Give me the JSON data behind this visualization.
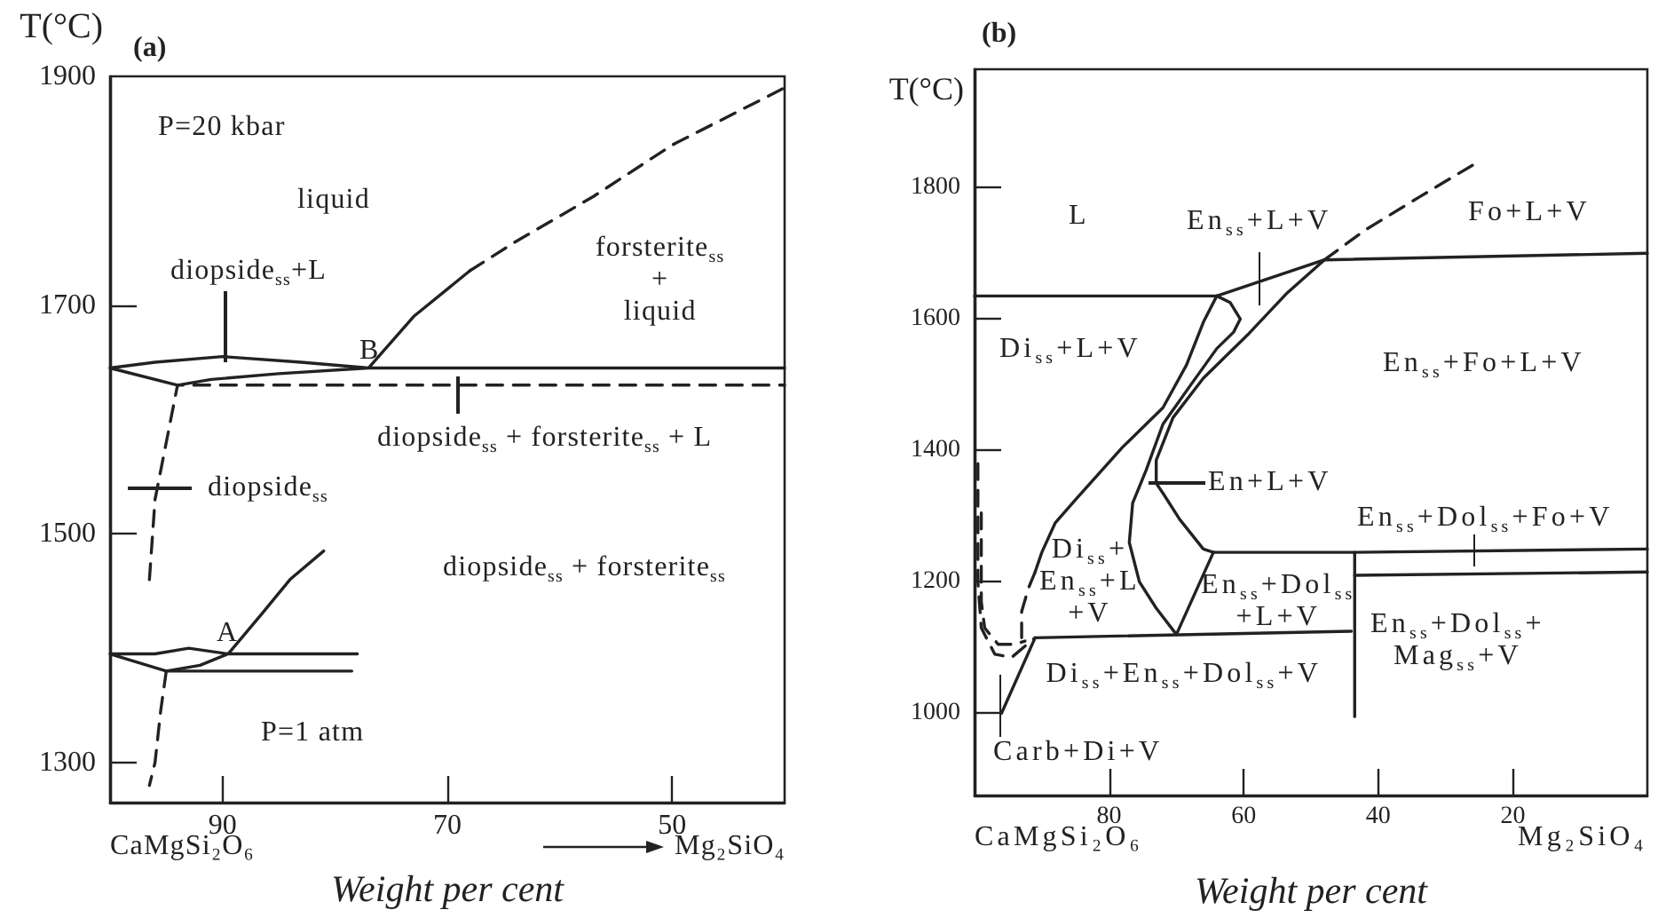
{
  "chart_data": [
    {
      "type": "line",
      "title": "(a)",
      "xlabel": "Weight per cent",
      "ylabel": "T(°C)",
      "xlim": [
        100,
        40
      ],
      "ylim": [
        1265,
        1900
      ],
      "xticks": [
        90,
        70,
        50
      ],
      "yticks": [
        1300,
        1500,
        1700,
        1900
      ],
      "marker": "none",
      "line_style": "solid",
      "series": [
        {
          "color": "#222222",
          "x": [
            68,
            73,
            77,
            83,
            90,
            96,
            100,
            94,
            91,
            85,
            77,
            40
          ],
          "values": [
            1730,
            1690,
            1645,
            1650,
            1655,
            1650,
            1645,
            1630,
            1635,
            1640,
            1645,
            1645
          ]
        },
        {
          "color": "#222222",
          "line_style": "dashed",
          "x": [
            96.5,
            96,
            95,
            94.5,
            94,
            91,
            40
          ],
          "values": [
            1460,
            1530,
            1580,
            1605,
            1630,
            1630,
            1630
          ]
        },
        {
          "color": "#222222",
          "line_style": "dashed",
          "x": [
            68,
            64,
            57,
            50,
            40
          ],
          "values": [
            1730,
            1755,
            1795,
            1840,
            1890
          ]
        },
        {
          "color": "#222222",
          "x": [
            81,
            84,
            86.5,
            89.5,
            93,
            96,
            100,
            95,
            92,
            89.5,
            78
          ],
          "values": [
            1485,
            1460,
            1430,
            1395,
            1400,
            1395,
            1395,
            1380,
            1385,
            1395,
            1395
          ]
        },
        {
          "color": "#222222",
          "x": [
            95,
            78.5
          ],
          "values": [
            1380,
            1380
          ]
        },
        {
          "color": "#222222",
          "line_style": "dashed",
          "x": [
            95,
            95.5,
            96,
            96.5
          ],
          "values": [
            1380,
            1345,
            1300,
            1280
          ]
        }
      ],
      "annotations": [
        "P=20 kbar",
        "liquid",
        "forsterite$_{ss}$ + liquid",
        "diopside$_{ss}$+L",
        "B",
        "diopside$_{ss}$ + forsterite$_{ss}$ + L",
        "diopside$_{ss}$",
        "diopside$_{ss}$ + forsterite$_{ss}$",
        "A",
        "P=1 atm",
        "CaMgSi₂O₆",
        "Mg₂SiO₄"
      ]
    },
    {
      "type": "line",
      "title": "(b)",
      "xlabel": "Weight per cent",
      "ylabel": "T(°C)",
      "xlim": [
        100,
        0
      ],
      "ylim": [
        875,
        1980
      ],
      "xticks": [
        80,
        60,
        40,
        20
      ],
      "yticks": [
        1000,
        1200,
        1400,
        1600,
        1800
      ],
      "marker": "none",
      "line_style": "solid",
      "series": [
        {
          "color": "#222222",
          "x": [
            100,
            64,
            48,
            0
          ],
          "values": [
            1635,
            1635,
            1690,
            1700
          ]
        },
        {
          "color": "#222222",
          "line_style": "dashed",
          "x": [
            48,
            42,
            34,
            25
          ],
          "values": [
            1690,
            1735,
            1785,
            1840
          ]
        },
        {
          "color": "#222222",
          "x": [
            91,
            90,
            88,
            85,
            78,
            72,
            68.5,
            66,
            64,
            62,
            60.5,
            61.5,
            64,
            67.5,
            72,
            74.5,
            76.5,
            77,
            75.5,
            73,
            70,
            64.5
          ],
          "values": [
            1215,
            1245,
            1290,
            1325,
            1405,
            1465,
            1530,
            1595,
            1635,
            1625,
            1600,
            1580,
            1555,
            1505,
            1440,
            1370,
            1320,
            1260,
            1200,
            1160,
            1120,
            1245
          ]
        },
        {
          "color": "#222222",
          "line_style": "dashed",
          "x": [
            91,
            92,
            93,
            93
          ],
          "values": [
            1215,
            1190,
            1155,
            1115
          ]
        },
        {
          "color": "#222222",
          "x": [
            48,
            53.5,
            59.5,
            66,
            70.5,
            73,
            73,
            72,
            69.5,
            66,
            64.5,
            43.5,
            0
          ],
          "values": [
            1690,
            1640,
            1575,
            1510,
            1450,
            1385,
            1350,
            1335,
            1295,
            1250,
            1245,
            1245,
            1250
          ]
        },
        {
          "color": "#222222",
          "x": [
            96,
            91,
            44
          ],
          "values": [
            1000,
            1115,
            1125
          ]
        },
        {
          "color": "#222222",
          "x": [
            43.5,
            43.5
          ],
          "values": [
            1245,
            995
          ]
        },
        {
          "color": "#222222",
          "x": [
            43.5,
            0
          ],
          "values": [
            1210,
            1215
          ]
        },
        {
          "color": "#222222",
          "line_style": "dashed",
          "x": [
            99.5,
            99.5,
            99,
            97,
            94.5,
            91
          ],
          "values": [
            1380,
            1200,
            1130,
            1090,
            1085,
            1115
          ]
        },
        {
          "color": "#222222",
          "line_style": "dashed",
          "x": [
            99,
            99,
            98.5,
            96.5,
            94,
            92.5
          ],
          "values": [
            1305,
            1170,
            1130,
            1105,
            1105,
            1110
          ]
        }
      ],
      "annotations": [
        "L",
        "En$_{ss}$+L+V",
        "Fo+L+V",
        "Di$_{ss}$+L+V",
        "En$_{ss}$+Fo+L+V",
        "En+L+V",
        "En$_{ss}$+Dol$_{ss}$+Fo+V",
        "Di$_{ss}$+ En$_{ss}$+L +V",
        "En$_{ss}$+Dol$_{ss}$ +L+V",
        "En$_{ss}$+Dol$_{ss}$+ Mag$_{ss}$+V",
        "Di$_{ss}$+En$_{ss}$+Dol$_{ss}$+V",
        "Carb+Di+V",
        "CaMgSi₂O₆",
        "Mg₂SiO₄"
      ]
    }
  ]
}
